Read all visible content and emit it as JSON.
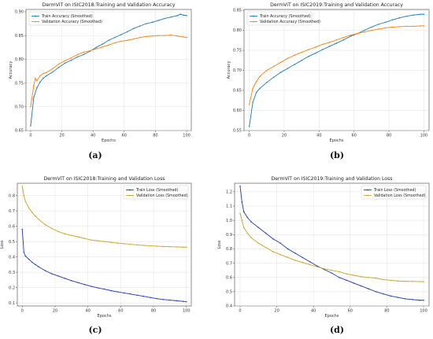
{
  "chart_data": [
    {
      "type": "line",
      "title": "DermViT on ISIC2018:Training and Validation Accuracy",
      "xlabel": "Epochs",
      "ylabel": "Accuracy",
      "xlim": [
        -3,
        103
      ],
      "ylim": [
        0.65,
        0.905
      ],
      "xticks": [
        "0",
        "20",
        "40",
        "60",
        "80",
        "100"
      ],
      "yticks": [
        "0.65",
        "0.70",
        "0.75",
        "0.80",
        "0.85",
        "0.90"
      ],
      "grid": true,
      "legend": "upper-left",
      "panel_label": "(a)",
      "series": [
        {
          "name": "Train Accuracy (Smoothed)",
          "color": "#1f77b4",
          "x": [
            0,
            2,
            4,
            6,
            8,
            10,
            14,
            18,
            22,
            26,
            30,
            34,
            38,
            42,
            46,
            50,
            54,
            58,
            62,
            66,
            70,
            74,
            78,
            82,
            86,
            90,
            94,
            96,
            98,
            100
          ],
          "y": [
            0.66,
            0.72,
            0.74,
            0.752,
            0.76,
            0.765,
            0.773,
            0.783,
            0.792,
            0.798,
            0.805,
            0.81,
            0.817,
            0.825,
            0.832,
            0.84,
            0.846,
            0.852,
            0.858,
            0.865,
            0.87,
            0.875,
            0.878,
            0.882,
            0.886,
            0.889,
            0.892,
            0.895,
            0.893,
            0.892
          ]
        },
        {
          "name": "Validation Accuracy (Smoothed)",
          "color": "#ff7f0e",
          "x": [
            0,
            2,
            3,
            4,
            6,
            8,
            10,
            14,
            18,
            22,
            26,
            30,
            34,
            38,
            42,
            46,
            50,
            54,
            58,
            62,
            66,
            70,
            74,
            78,
            82,
            86,
            90,
            94,
            98,
            100
          ],
          "y": [
            0.7,
            0.745,
            0.76,
            0.755,
            0.765,
            0.77,
            0.772,
            0.78,
            0.79,
            0.797,
            0.803,
            0.81,
            0.815,
            0.818,
            0.822,
            0.826,
            0.83,
            0.835,
            0.838,
            0.84,
            0.843,
            0.846,
            0.848,
            0.849,
            0.85,
            0.85,
            0.851,
            0.849,
            0.847,
            0.846
          ]
        }
      ]
    },
    {
      "type": "line",
      "title": "DermViT on ISIC2019:Training and Validation Accuracy",
      "xlabel": "Epochs",
      "ylabel": "Accuracy",
      "xlim": [
        -3,
        103
      ],
      "ylim": [
        0.55,
        0.852
      ],
      "xticks": [
        "0",
        "20",
        "40",
        "60",
        "80",
        "100"
      ],
      "yticks": [
        "0.55",
        "0.60",
        "0.65",
        "0.70",
        "0.75",
        "0.80",
        "0.85"
      ],
      "grid": true,
      "legend": "upper-left",
      "panel_label": "(b)",
      "series": [
        {
          "name": "Train Accuracy (Smoothed)",
          "color": "#1f77b4",
          "x": [
            0,
            2,
            4,
            6,
            10,
            14,
            18,
            22,
            26,
            30,
            34,
            38,
            42,
            46,
            50,
            54,
            58,
            62,
            66,
            70,
            74,
            78,
            82,
            86,
            90,
            94,
            98,
            100
          ],
          "y": [
            0.56,
            0.62,
            0.645,
            0.655,
            0.67,
            0.683,
            0.695,
            0.705,
            0.715,
            0.725,
            0.735,
            0.743,
            0.752,
            0.76,
            0.768,
            0.776,
            0.785,
            0.792,
            0.8,
            0.808,
            0.815,
            0.82,
            0.826,
            0.831,
            0.835,
            0.838,
            0.84,
            0.84
          ]
        },
        {
          "name": "Validation Accuracy (Smoothed)",
          "color": "#ff7f0e",
          "x": [
            0,
            2,
            4,
            6,
            10,
            14,
            18,
            22,
            26,
            30,
            34,
            38,
            42,
            46,
            50,
            54,
            58,
            62,
            66,
            70,
            74,
            78,
            82,
            86,
            90,
            94,
            98,
            100
          ],
          "y": [
            0.615,
            0.655,
            0.672,
            0.685,
            0.7,
            0.71,
            0.72,
            0.73,
            0.738,
            0.745,
            0.752,
            0.758,
            0.765,
            0.77,
            0.776,
            0.782,
            0.788,
            0.792,
            0.796,
            0.8,
            0.803,
            0.806,
            0.808,
            0.809,
            0.81,
            0.81,
            0.811,
            0.811
          ]
        }
      ]
    },
    {
      "type": "line",
      "title": "DermViT on ISIC2018:Training and Validation Loss",
      "xlabel": "Epochs",
      "ylabel": "Loss",
      "xlim": [
        -3,
        103
      ],
      "ylim": [
        0.08,
        0.88
      ],
      "xticks": [
        "0",
        "20",
        "40",
        "60",
        "80",
        "100"
      ],
      "yticks": [
        "0.1",
        "0.2",
        "0.3",
        "0.4",
        "0.5",
        "0.6",
        "0.7",
        "0.8"
      ],
      "grid": true,
      "legend": "upper-right",
      "panel_label": "(c)",
      "series": [
        {
          "name": "Train Loss (Smoothed)",
          "color": "#1f3aa6",
          "x": [
            0,
            1,
            2,
            4,
            6,
            8,
            10,
            14,
            18,
            22,
            26,
            30,
            34,
            38,
            42,
            46,
            50,
            54,
            58,
            62,
            66,
            70,
            74,
            78,
            82,
            86,
            90,
            94,
            98,
            100
          ],
          "y": [
            0.58,
            0.43,
            0.405,
            0.385,
            0.365,
            0.35,
            0.335,
            0.31,
            0.29,
            0.275,
            0.26,
            0.245,
            0.232,
            0.22,
            0.208,
            0.198,
            0.19,
            0.18,
            0.172,
            0.165,
            0.158,
            0.15,
            0.143,
            0.135,
            0.128,
            0.122,
            0.118,
            0.114,
            0.11,
            0.108
          ]
        },
        {
          "name": "Validation Loss (Smoothed)",
          "color": "#c9a227",
          "x": [
            0,
            1,
            2,
            4,
            6,
            8,
            10,
            14,
            18,
            22,
            26,
            30,
            34,
            38,
            42,
            46,
            50,
            54,
            58,
            62,
            66,
            70,
            74,
            78,
            82,
            86,
            90,
            94,
            98,
            100
          ],
          "y": [
            0.86,
            0.8,
            0.76,
            0.72,
            0.69,
            0.665,
            0.645,
            0.61,
            0.585,
            0.565,
            0.55,
            0.54,
            0.53,
            0.52,
            0.51,
            0.505,
            0.5,
            0.495,
            0.49,
            0.486,
            0.482,
            0.478,
            0.475,
            0.472,
            0.47,
            0.468,
            0.466,
            0.465,
            0.464,
            0.463
          ]
        }
      ]
    },
    {
      "type": "line",
      "title": "DermViT on ISIC2019:Training and Validation Loss",
      "xlabel": "Epochs",
      "ylabel": "Loss",
      "xlim": [
        -3,
        103
      ],
      "ylim": [
        0.4,
        1.26
      ],
      "xticks": [
        "0",
        "20",
        "40",
        "60",
        "80",
        "100"
      ],
      "yticks": [
        "0.4",
        "0.5",
        "0.6",
        "0.7",
        "0.8",
        "0.9",
        "1.0",
        "1.1",
        "1.2"
      ],
      "grid": true,
      "legend": "upper-right",
      "panel_label": "(d)",
      "series": [
        {
          "name": "Train Loss (Smoothed)",
          "color": "#1f3aa6",
          "x": [
            0,
            1,
            2,
            4,
            6,
            10,
            14,
            18,
            22,
            26,
            30,
            34,
            38,
            42,
            46,
            50,
            54,
            58,
            62,
            66,
            70,
            74,
            78,
            82,
            86,
            90,
            94,
            98,
            100
          ],
          "y": [
            1.24,
            1.13,
            1.06,
            1.02,
            0.99,
            0.95,
            0.91,
            0.87,
            0.84,
            0.8,
            0.77,
            0.74,
            0.71,
            0.68,
            0.655,
            0.63,
            0.6,
            0.58,
            0.56,
            0.54,
            0.52,
            0.5,
            0.485,
            0.47,
            0.46,
            0.45,
            0.445,
            0.44,
            0.44
          ]
        },
        {
          "name": "Validation Loss (Smoothed)",
          "color": "#c9a227",
          "x": [
            0,
            1,
            2,
            4,
            6,
            10,
            14,
            18,
            22,
            26,
            30,
            34,
            38,
            42,
            46,
            50,
            54,
            58,
            62,
            66,
            70,
            74,
            78,
            82,
            86,
            90,
            94,
            98,
            100
          ],
          "y": [
            1.05,
            1.0,
            0.95,
            0.91,
            0.88,
            0.84,
            0.81,
            0.78,
            0.76,
            0.74,
            0.72,
            0.705,
            0.69,
            0.675,
            0.66,
            0.65,
            0.64,
            0.625,
            0.615,
            0.605,
            0.6,
            0.595,
            0.585,
            0.58,
            0.575,
            0.573,
            0.572,
            0.571,
            0.57
          ]
        }
      ]
    }
  ]
}
